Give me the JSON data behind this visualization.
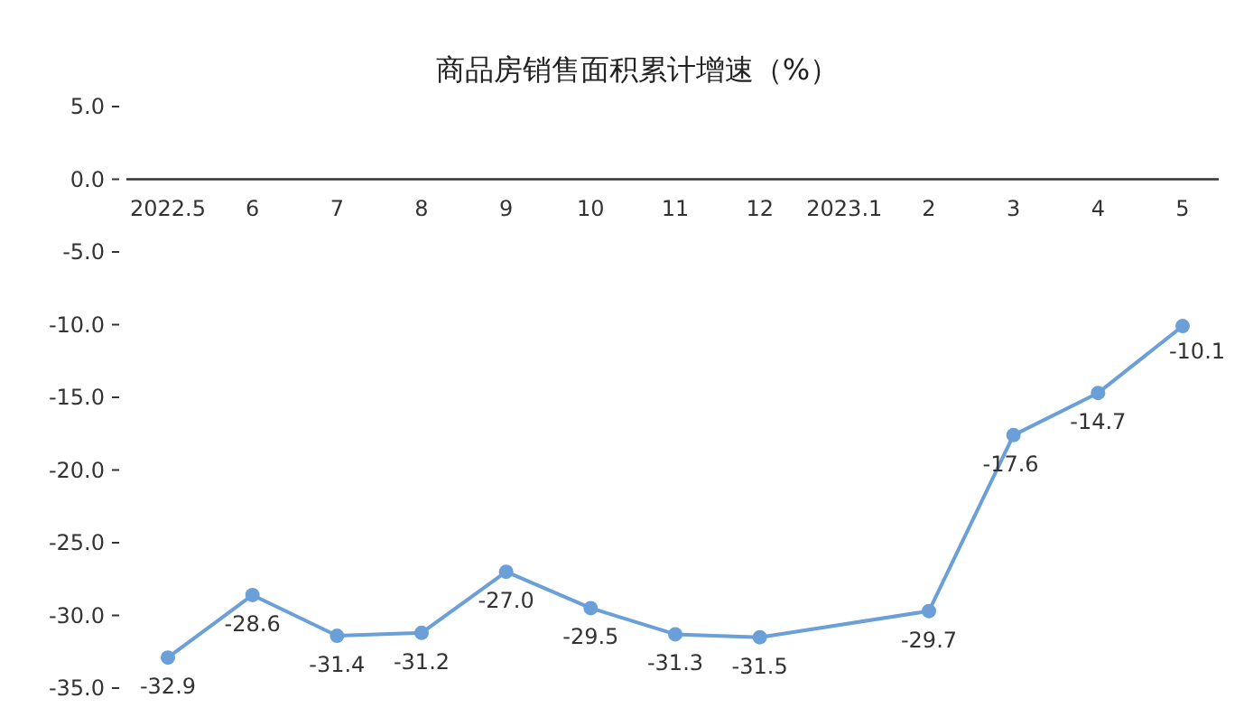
{
  "chart_data": {
    "type": "line",
    "title": "商品房销售面积累计增速（%）",
    "categories": [
      "2022.5",
      "6",
      "7",
      "8",
      "9",
      "10",
      "11",
      "12",
      "2023.1",
      "2",
      "3",
      "4",
      "5"
    ],
    "values": [
      -32.9,
      -28.6,
      -31.4,
      -31.2,
      -27.0,
      -29.5,
      -31.3,
      -31.5,
      null,
      -29.7,
      -17.6,
      -14.7,
      -10.1
    ],
    "value_labels": [
      "-32.9",
      "-28.6",
      "-31.4",
      "-31.2",
      "-27.0",
      "-29.5",
      "-31.3",
      "-31.5",
      null,
      "-29.7",
      "-17.6",
      "-14.7",
      "-10.1"
    ],
    "color": "#6a9fd8",
    "marker": "circle",
    "line_style": "solid",
    "grid": false,
    "ylim": [
      -35,
      5
    ],
    "yticks": [
      {
        "value": 5,
        "label": "5.0"
      },
      {
        "value": 0,
        "label": "0.0"
      },
      {
        "value": -5,
        "label": "-5.0"
      },
      {
        "value": -10,
        "label": "-10.0"
      },
      {
        "value": -15,
        "label": "-15.0"
      },
      {
        "value": -20,
        "label": "-20.0"
      },
      {
        "value": -25,
        "label": "-25.0"
      },
      {
        "value": -30,
        "label": "-30.0"
      },
      {
        "value": -35,
        "label": "-35.0"
      }
    ]
  }
}
